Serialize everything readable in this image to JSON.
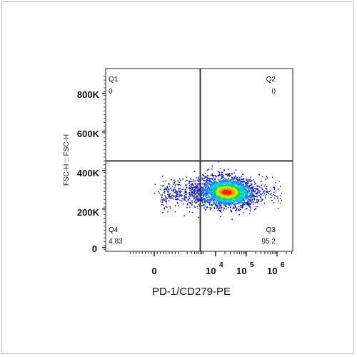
{
  "chart_data": {
    "type": "scatter",
    "title": "",
    "xlabel": "PD-1/CD279-PE",
    "ylabel": "FSC-H :: FSC-H",
    "x_scale": "biexponential",
    "x_tick_labels": [
      {
        "base": "0",
        "exp": ""
      },
      {
        "base": "10",
        "exp": "4"
      },
      {
        "base": "10",
        "exp": "5"
      },
      {
        "base": "10",
        "exp": "6"
      }
    ],
    "y_tick_labels": [
      "0",
      "200K",
      "400K",
      "600K",
      "800K"
    ],
    "y_ticks": [
      0,
      200000,
      400000,
      600000,
      800000
    ],
    "ylim": [
      -20000,
      930000
    ],
    "quadrant_gate": {
      "x_decade": 3.75,
      "y": 450000
    },
    "quadrants": [
      {
        "name": "Q1",
        "value": "0"
      },
      {
        "name": "Q2",
        "value": "0"
      },
      {
        "name": "Q3",
        "value": "95.2"
      },
      {
        "name": "Q4",
        "value": "4.83"
      }
    ],
    "population": {
      "center_log10_x": 4.35,
      "center_y": 290000,
      "y_spread": 40000,
      "color_scale": [
        "#1010c8",
        "#1e78ff",
        "#00c8ff",
        "#00e050",
        "#c8e600",
        "#ffa000",
        "#ff2000"
      ]
    }
  }
}
